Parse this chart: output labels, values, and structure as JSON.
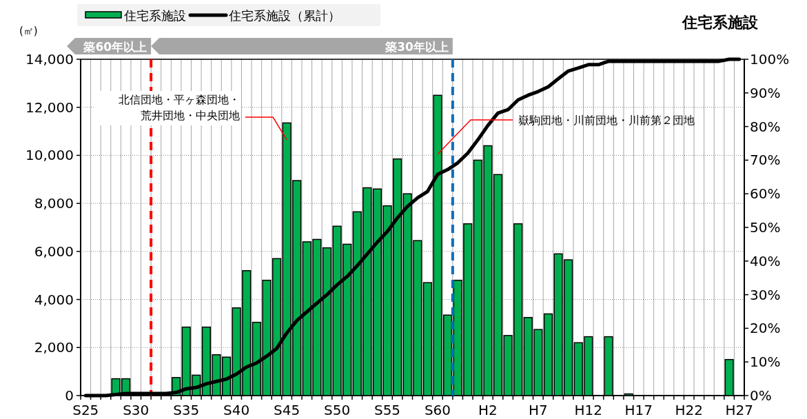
{
  "chart_data": {
    "type": "bar",
    "title": "住宅系施設",
    "ylabel": "(㎡)",
    "categories": [
      "S25",
      null,
      null,
      null,
      null,
      "S30",
      null,
      null,
      null,
      null,
      "S35",
      null,
      null,
      null,
      null,
      "S40",
      null,
      null,
      null,
      null,
      "S45",
      null,
      null,
      null,
      null,
      "S50",
      null,
      null,
      null,
      null,
      "S55",
      null,
      null,
      null,
      null,
      "S60",
      null,
      null,
      null,
      null,
      "H2",
      null,
      null,
      null,
      null,
      "H7",
      null,
      null,
      null,
      null,
      "H12",
      null,
      null,
      null,
      null,
      "H17",
      null,
      null,
      null,
      null,
      "H22",
      null,
      null,
      null,
      null,
      "H27"
    ],
    "series": [
      {
        "name": "住宅系施設",
        "color": "#00b050",
        "values": [
          0,
          0,
          0,
          700,
          700,
          0,
          0,
          0,
          0,
          750,
          2850,
          850,
          2850,
          1700,
          1600,
          3650,
          5200,
          3050,
          4800,
          5700,
          11350,
          8950,
          6400,
          6500,
          6150,
          7050,
          6300,
          7650,
          8650,
          8600,
          7900,
          9850,
          8400,
          6450,
          4700,
          12500,
          3350,
          4800,
          7150,
          9800,
          10400,
          9200,
          2500,
          7150,
          3250,
          2750,
          3400,
          5900,
          5650,
          2200,
          2450,
          0,
          2450,
          0,
          70,
          0,
          0,
          0,
          0,
          0,
          0,
          0,
          0,
          0,
          1500,
          0
        ]
      },
      {
        "name": "住宅系施設（累計）",
        "type": "line",
        "axis": "y2",
        "color": "#000000",
        "values": [
          0,
          0,
          0,
          0.3,
          0.6,
          0.6,
          0.6,
          0.6,
          0.6,
          0.9,
          2.0,
          2.4,
          3.5,
          4.2,
          4.9,
          6.4,
          8.5,
          9.7,
          11.7,
          14.0,
          18.6,
          22.3,
          24.9,
          27.5,
          30.0,
          32.9,
          35.4,
          38.6,
          42.1,
          45.6,
          48.8,
          52.8,
          56.2,
          58.8,
          60.7,
          65.8,
          67.2,
          69.2,
          72.1,
          76.0,
          80.3,
          84.0,
          85.0,
          87.9,
          89.3,
          90.4,
          91.8,
          94.2,
          96.5,
          97.4,
          98.4,
          98.4,
          99.4,
          99.4,
          99.4,
          99.4,
          99.4,
          99.4,
          99.4,
          99.4,
          99.4,
          99.4,
          99.4,
          99.4,
          100,
          100
        ]
      }
    ],
    "ylim": [
      0,
      14000
    ],
    "yticks": [
      0,
      {
        "value": 2000,
        "label": "2,000"
      },
      {
        "value": 4000,
        "label": "4,000"
      },
      {
        "value": 6000,
        "label": "6,000"
      },
      {
        "value": 8000,
        "label": "8,000"
      },
      {
        "value": 10000,
        "label": "10,000"
      },
      {
        "value": 12000,
        "label": "12,000"
      },
      {
        "value": 14000,
        "label": "14,000"
      }
    ],
    "y2lim": [
      0,
      100
    ],
    "y2ticks": [
      {
        "value": 0,
        "label": "0%"
      },
      {
        "value": 10,
        "label": "10%"
      },
      {
        "value": 20,
        "label": "20%"
      },
      {
        "value": 30,
        "label": "30%"
      },
      {
        "value": 40,
        "label": "40%"
      },
      {
        "value": 50,
        "label": "50%"
      },
      {
        "value": 60,
        "label": "60%"
      },
      {
        "value": 70,
        "label": "70%"
      },
      {
        "value": 80,
        "label": "80%"
      },
      {
        "value": 90,
        "label": "90%"
      },
      {
        "value": 100,
        "label": "100%"
      }
    ],
    "grid": true,
    "legend": "top left",
    "annotations": [
      "築60年以上",
      "築30年以上",
      "北信団地・平ヶ森団地・荒井団地・中央団地",
      "嶽駒団地・川前団地・川前第２団地"
    ]
  }
}
